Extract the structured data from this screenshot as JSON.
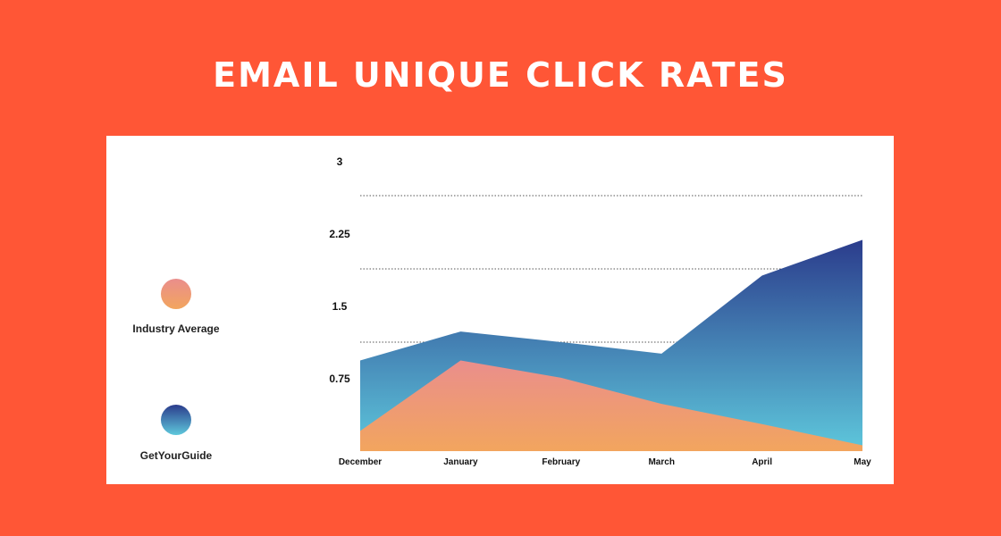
{
  "chart_data": {
    "type": "area",
    "title": "EMAIL UNIQUE CLICK RATES",
    "xlabel": "",
    "ylabel": "",
    "categories": [
      "December",
      "January",
      "February",
      "March",
      "April",
      "May"
    ],
    "yticks": [
      "3",
      "2.25",
      "1.5",
      "0.75"
    ],
    "ylim": [
      0,
      3
    ],
    "grid": "dotted horizontal",
    "legend_position": "left",
    "series": [
      {
        "name": "GetYourGuide",
        "values": [
          0.94,
          1.24,
          1.13,
          1.01,
          1.82,
          2.19
        ],
        "color_top": "#2B3C8C",
        "color_bottom": "#5EC8DC"
      },
      {
        "name": "Industry Average",
        "values": [
          0.21,
          0.94,
          0.76,
          0.49,
          0.28,
          0.06
        ],
        "color_top": "#EA8E8C",
        "color_bottom": "#F2A55E"
      }
    ]
  },
  "background_color": "#FF5636"
}
